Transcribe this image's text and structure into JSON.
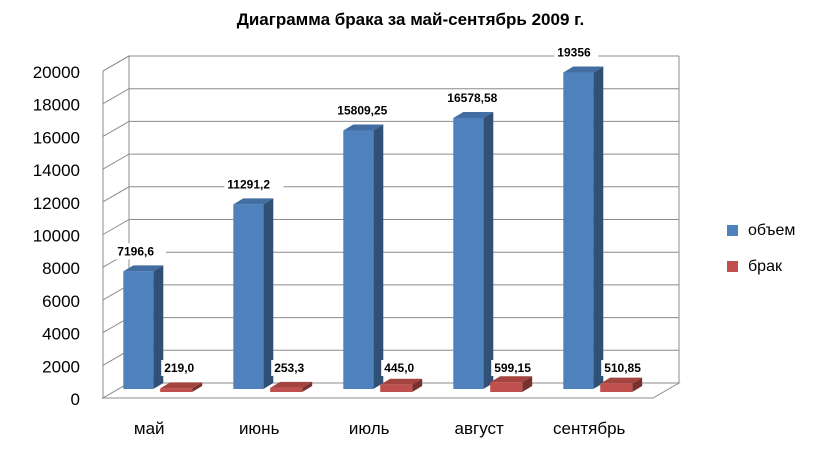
{
  "chart_data": {
    "type": "bar",
    "title": "Диаграмма брака за май-сентябрь 2009 г.",
    "categories": [
      "май",
      "июнь",
      "июль",
      "август",
      "сентябрь"
    ],
    "series": [
      {
        "name": "объем",
        "color": "#4f81bd",
        "values": [
          7196.6,
          11291.2,
          15809.25,
          16578.58,
          19356
        ],
        "labels": [
          "7196,6",
          "11291,2",
          "15809,25",
          "16578,58",
          "19356"
        ]
      },
      {
        "name": "брак",
        "color": "#c0504d",
        "values": [
          219.0,
          253.3,
          445.0,
          599.15,
          510.85
        ],
        "labels": [
          "219,0",
          "253,3",
          "445,0",
          "599,15",
          "510,85"
        ]
      }
    ],
    "yticks": [
      "0",
      "2000",
      "4000",
      "6000",
      "8000",
      "10000",
      "12000",
      "14000",
      "16000",
      "18000",
      "20000"
    ],
    "ylim": [
      0,
      20000
    ],
    "grid": true,
    "legend_position": "right",
    "style": "3d-column"
  }
}
